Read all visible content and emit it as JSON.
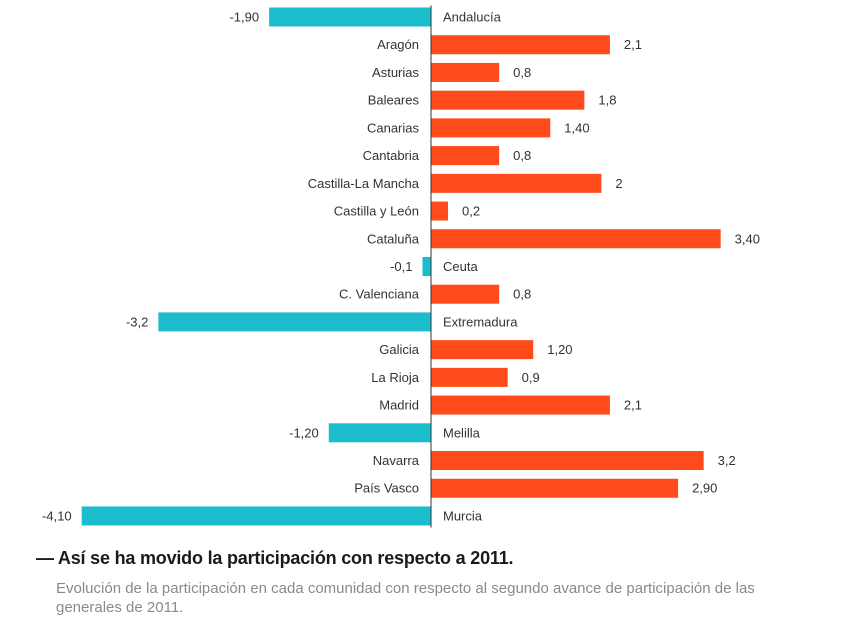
{
  "chart_data": {
    "type": "bar",
    "orientation": "horizontal",
    "title": "Así se ha movido la participación con respecto a 2011.",
    "subtitle": "Evolución de la participación en cada comunidad con respecto al segundo avance de participación de las generales de 2011.",
    "xlabel": "",
    "ylabel": "",
    "xlim": [
      -4.1,
      3.4
    ],
    "grid": false,
    "legend": "none",
    "colors": {
      "positive": "#ff4a1c",
      "negative": "#1bbccc",
      "axis": "#333333"
    },
    "categories": [
      "Andalucía",
      "Aragón",
      "Asturias",
      "Baleares",
      "Canarias",
      "Cantabria",
      "Castilla-La Mancha",
      "Castilla y León",
      "Cataluña",
      "Ceuta",
      "C. Valenciana",
      "Extremadura",
      "Galicia",
      "La Rioja",
      "Madrid",
      "Melilla",
      "Navarra",
      "País Vasco",
      "Murcia"
    ],
    "values": [
      -1.9,
      2.1,
      0.8,
      1.8,
      1.4,
      0.8,
      2.0,
      0.2,
      3.4,
      -0.1,
      0.8,
      -3.2,
      1.2,
      0.9,
      2.1,
      -1.2,
      3.2,
      2.9,
      -4.1
    ],
    "value_labels": [
      "-1,90",
      "2,1",
      "0,8",
      "1,8",
      "1,40",
      "0,8",
      "2",
      "0,2",
      "3,40",
      "-0,1",
      "0,8",
      "-3,2",
      "1,20",
      "0,9",
      "2,1",
      "-1,20",
      "3,2",
      "2,90",
      "-4,10"
    ]
  },
  "caption": {
    "title": "— Así se ha movido la participación con respecto a 2011.",
    "text": "Evolución de la participación en cada comunidad con respecto al segundo avance de participación de las generales de 2011."
  }
}
